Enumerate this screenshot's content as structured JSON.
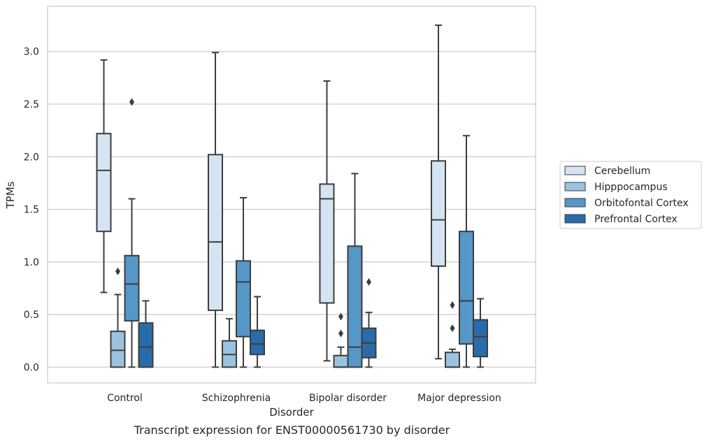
{
  "caption": "Transcript expression for ENST00000561730 by disorder",
  "chart_data": {
    "type": "boxplot",
    "xlabel": "Disorder",
    "ylabel": "TPMs",
    "ylim": [
      -0.15,
      3.43
    ],
    "yticks": [
      0.0,
      0.5,
      1.0,
      1.5,
      2.0,
      2.5,
      3.0
    ],
    "ytick_labels": [
      "0.0",
      "0.5",
      "1.0",
      "1.5",
      "2.0",
      "2.5",
      "3.0"
    ],
    "grid": true,
    "legend_position": "right",
    "categories": [
      "Control",
      "Schizophrenia",
      "Bipolar disorder",
      "Major depression"
    ],
    "series": [
      {
        "name": "Cerebellum",
        "color": "#d5e3f2",
        "boxes": [
          {
            "whislo": 0.71,
            "q1": 1.29,
            "med": 1.87,
            "q3": 2.22,
            "whishi": 2.92,
            "fliers": []
          },
          {
            "whislo": 0.0,
            "q1": 0.54,
            "med": 1.19,
            "q3": 2.02,
            "whishi": 2.99,
            "fliers": []
          },
          {
            "whislo": 0.06,
            "q1": 0.61,
            "med": 1.6,
            "q3": 1.74,
            "whishi": 2.72,
            "fliers": []
          },
          {
            "whislo": 0.08,
            "q1": 0.96,
            "med": 1.4,
            "q3": 1.96,
            "whishi": 3.25,
            "fliers": []
          }
        ]
      },
      {
        "name": "Hipppocampus",
        "color": "#9ac3df",
        "boxes": [
          {
            "whislo": 0.0,
            "q1": 0.0,
            "med": 0.16,
            "q3": 0.34,
            "whishi": 0.69,
            "fliers": [
              0.91
            ]
          },
          {
            "whislo": 0.0,
            "q1": 0.0,
            "med": 0.12,
            "q3": 0.25,
            "whishi": 0.46,
            "fliers": []
          },
          {
            "whislo": 0.0,
            "q1": 0.0,
            "med": 0.0,
            "q3": 0.11,
            "whishi": 0.19,
            "fliers": [
              0.32,
              0.48
            ]
          },
          {
            "whislo": 0.0,
            "q1": 0.0,
            "med": 0.0,
            "q3": 0.14,
            "whishi": 0.17,
            "fliers": [
              0.37,
              0.59
            ]
          }
        ]
      },
      {
        "name": "Orbitofontal Cortex",
        "color": "#5597c6",
        "boxes": [
          {
            "whislo": 0.0,
            "q1": 0.44,
            "med": 0.79,
            "q3": 1.06,
            "whishi": 1.6,
            "fliers": [
              2.52
            ]
          },
          {
            "whislo": 0.0,
            "q1": 0.29,
            "med": 0.81,
            "q3": 1.01,
            "whishi": 1.61,
            "fliers": []
          },
          {
            "whislo": 0.0,
            "q1": 0.0,
            "med": 0.19,
            "q3": 1.15,
            "whishi": 1.84,
            "fliers": []
          },
          {
            "whislo": 0.0,
            "q1": 0.22,
            "med": 0.63,
            "q3": 1.29,
            "whishi": 2.2,
            "fliers": []
          }
        ]
      },
      {
        "name": "Prefrontal Cortex",
        "color": "#2a6ba9",
        "boxes": [
          {
            "whislo": 0.0,
            "q1": 0.0,
            "med": 0.19,
            "q3": 0.42,
            "whishi": 0.63,
            "fliers": []
          },
          {
            "whislo": 0.0,
            "q1": 0.12,
            "med": 0.22,
            "q3": 0.35,
            "whishi": 0.67,
            "fliers": []
          },
          {
            "whislo": 0.0,
            "q1": 0.09,
            "med": 0.23,
            "q3": 0.37,
            "whishi": 0.52,
            "fliers": [
              0.81
            ]
          },
          {
            "whislo": 0.0,
            "q1": 0.1,
            "med": 0.29,
            "q3": 0.45,
            "whishi": 0.65,
            "fliers": []
          }
        ]
      }
    ]
  }
}
